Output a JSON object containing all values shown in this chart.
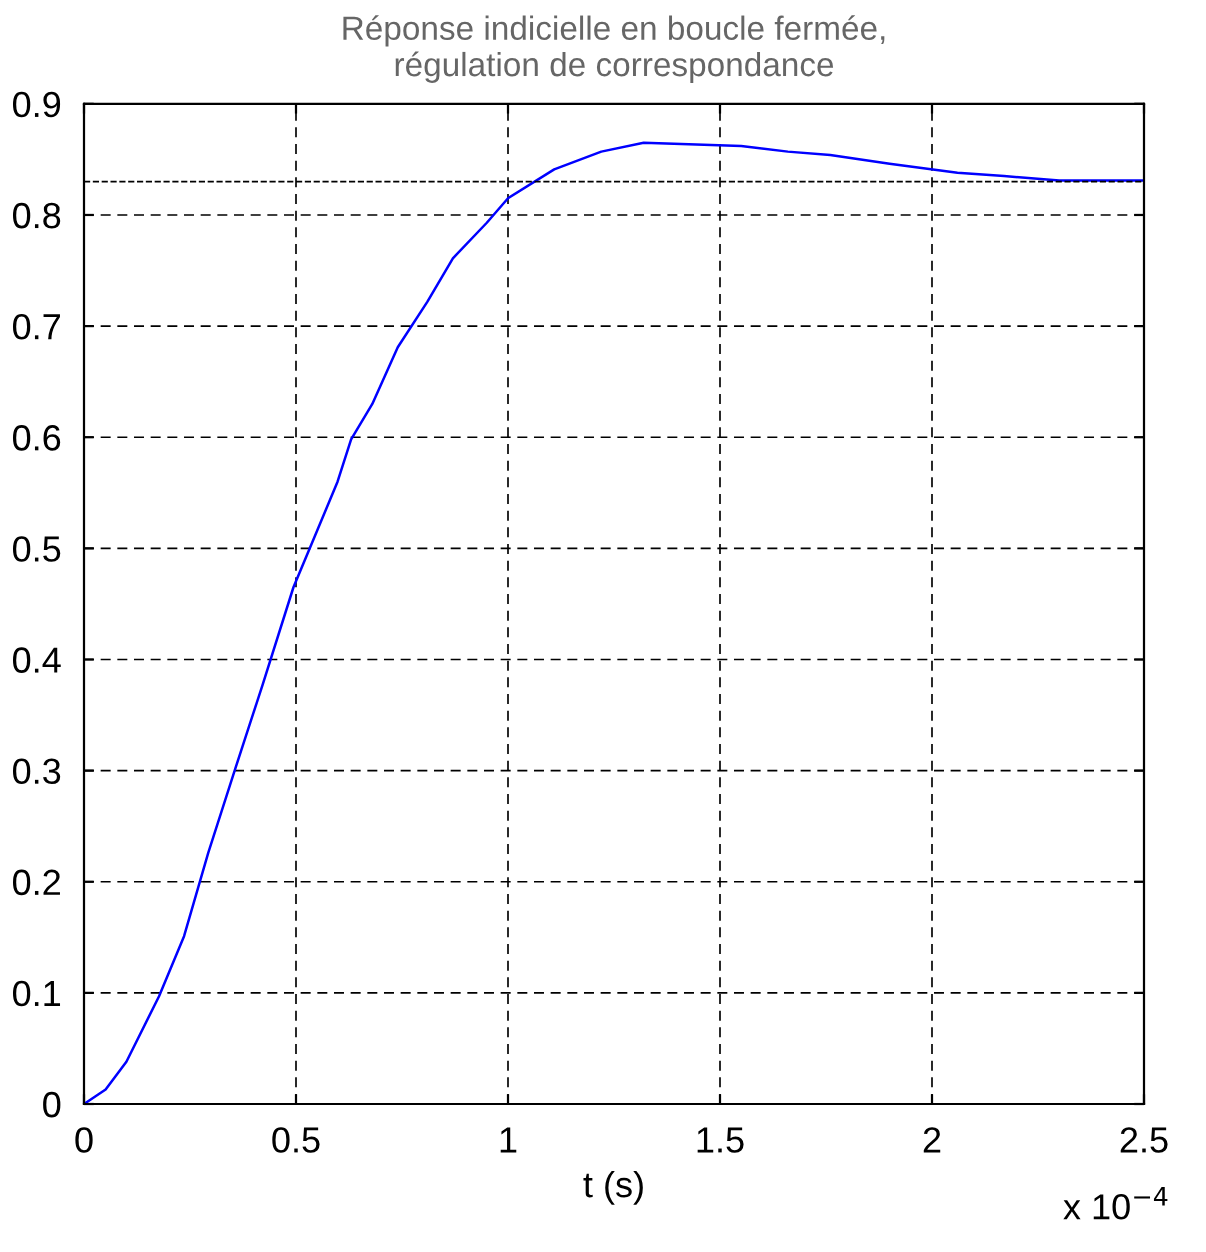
{
  "chart_data": {
    "type": "line",
    "title": "Réponse indicielle en boucle fermée,\nrégulation de correspondance",
    "xlabel": "t (s)",
    "annotations": [
      "x 10$^{−4}$"
    ],
    "x": [
      0,
      0.051,
      0.1,
      0.177,
      0.236,
      0.293,
      0.357,
      0.421,
      0.494,
      0.55,
      0.598,
      0.63,
      0.68,
      0.74,
      0.81,
      0.87,
      0.95,
      1.0,
      1.109,
      1.22,
      1.32,
      1.55,
      1.66,
      1.76,
      1.9,
      1.98,
      2.06,
      2.17,
      2.3,
      2.5
    ],
    "series": [
      {
        "color": "#0000ff",
        "values": [
          0,
          0.013,
          0.038,
          0.097,
          0.151,
          0.226,
          0.302,
          0.377,
          0.465,
          0.516,
          0.56,
          0.598,
          0.63,
          0.681,
          0.722,
          0.761,
          0.793,
          0.815,
          0.841,
          0.857,
          0.865,
          0.862,
          0.857,
          0.854,
          0.846,
          0.842,
          0.838,
          0.835,
          0.831,
          0.831
        ]
      }
    ],
    "xlim": [
      0,
      2.5
    ],
    "xticks": [
      0,
      0.5,
      1,
      1.5,
      2,
      2.5
    ],
    "ylim": [
      0,
      0.9
    ],
    "yticks": [
      0,
      0.1,
      0.2,
      0.3,
      0.4,
      0.5,
      0.6,
      0.7,
      0.8,
      0.9
    ],
    "grid": true,
    "line_style": "solid",
    "ref_lines": [
      {
        "axis": "y",
        "value": 0.83,
        "line_style": "dashed"
      }
    ]
  }
}
